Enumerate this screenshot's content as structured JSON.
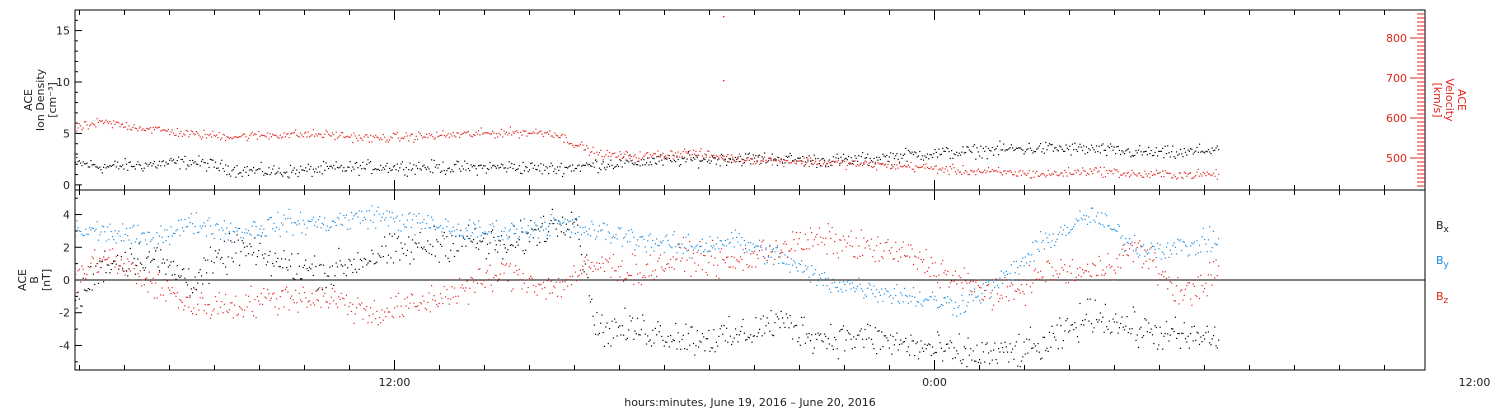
{
  "colors": {
    "black": "#000000",
    "red": "#e0241b",
    "blue": "#1a8ae0",
    "frame": "#000000"
  },
  "xaxis": {
    "label": "hours:minutes, June 19, 2016 – June 20, 2016",
    "range_hours": [
      4.9,
      34.9
    ],
    "major_ticks": [
      {
        "h": 12,
        "label": "12:00"
      },
      {
        "h": 24,
        "label": "0:00"
      },
      {
        "h": 36,
        "label": "12:00"
      }
    ],
    "minor_step_hours": 1
  },
  "chart_data": [
    {
      "type": "scatter",
      "panel": "top",
      "ylabel": [
        "ACE",
        "Ion Density",
        "[cm⁻³]"
      ],
      "ylabel2": [
        "ACE",
        "Velocity",
        "[km/s]"
      ],
      "ylim": [
        -0.5,
        17
      ],
      "yticks": [
        0,
        5,
        10,
        15
      ],
      "y2lim": [
        420,
        870
      ],
      "y2ticks": [
        500,
        600,
        700,
        800
      ],
      "series": [
        {
          "axis": "left",
          "color": "black",
          "x": [
            4.9,
            5.5,
            6.5,
            7.5,
            8.5,
            9.5,
            10.5,
            11.5,
            12.5,
            13.5,
            14.5,
            15.5,
            16.5,
            17.5,
            18.5,
            19.5,
            20.5,
            21.5,
            22.5,
            23.5,
            24.5,
            25.5,
            26.5,
            27.5,
            28.5,
            29.5,
            30.3
          ],
          "y": [
            2.2,
            1.8,
            2.0,
            2.3,
            1.5,
            1.3,
            1.6,
            1.8,
            1.8,
            1.7,
            1.8,
            1.6,
            2.0,
            2.3,
            2.5,
            2.6,
            2.6,
            2.4,
            2.5,
            3.0,
            3.2,
            3.5,
            3.6,
            3.5,
            3.2,
            3.1,
            3.6
          ],
          "noise": 0.55
        },
        {
          "axis": "right",
          "color": "red",
          "x": [
            4.9,
            5.5,
            6.5,
            7.5,
            8.5,
            9.5,
            10.5,
            11.5,
            12.5,
            13.5,
            14.5,
            15.5,
            16.5,
            17.5,
            18.5,
            19.5,
            20.5,
            21.5,
            22.5,
            23.5,
            24.5,
            25.5,
            26.5,
            27.5,
            28.5,
            29.5,
            30.3
          ],
          "y": [
            575,
            590,
            575,
            560,
            555,
            560,
            560,
            550,
            555,
            560,
            565,
            565,
            510,
            505,
            515,
            500,
            495,
            490,
            485,
            480,
            470,
            465,
            460,
            470,
            460,
            460,
            460
          ],
          "noise": 10,
          "outliers": [
            {
              "x": 19.3,
              "y": 855
            },
            {
              "x": 19.3,
              "y": 695
            }
          ]
        }
      ]
    },
    {
      "type": "scatter",
      "panel": "bottom",
      "ylabel": [
        "ACE",
        "B",
        "[nT]"
      ],
      "ylim": [
        -5.5,
        5.5
      ],
      "yticks": [
        -4,
        -2,
        0,
        2,
        4
      ],
      "legend": [
        {
          "label": "B",
          "sub": "x",
          "color": "black"
        },
        {
          "label": "B",
          "sub": "y",
          "color": "blue"
        },
        {
          "label": "B",
          "sub": "z",
          "color": "red"
        }
      ],
      "series": [
        {
          "name": "Bx",
          "color": "black",
          "x": [
            4.9,
            5.5,
            6.5,
            7.5,
            8.5,
            9.5,
            10.5,
            11.5,
            12.5,
            13.5,
            14.5,
            15.5,
            16.0,
            16.5,
            17.5,
            18.5,
            19.5,
            20.5,
            21.5,
            22.5,
            23.5,
            24.5,
            25.5,
            26.5,
            27.5,
            28.5,
            29.5,
            30.3
          ],
          "y": [
            -1.5,
            1.0,
            1.5,
            0.0,
            2.0,
            1.0,
            0.5,
            1.5,
            2.0,
            2.5,
            2.0,
            3.5,
            4.0,
            -3.0,
            -3.0,
            -3.5,
            -3.5,
            -2.5,
            -3.5,
            -3.5,
            -4.0,
            -4.5,
            -4.5,
            -4.0,
            -2.0,
            -3.0,
            -3.5,
            -3.5
          ],
          "noise": 0.9
        },
        {
          "name": "By",
          "color": "blue",
          "x": [
            4.9,
            5.5,
            6.5,
            7.5,
            8.5,
            9.5,
            10.5,
            11.5,
            12.5,
            13.5,
            14.5,
            15.5,
            16.5,
            17.5,
            18.5,
            19.5,
            20.5,
            21.5,
            22.5,
            23.5,
            24.5,
            25.5,
            26.5,
            27.5,
            28.5,
            29.5,
            30.3
          ],
          "y": [
            3.0,
            3.0,
            2.5,
            3.5,
            3.0,
            3.5,
            3.5,
            4.0,
            3.5,
            3.0,
            3.0,
            3.5,
            3.0,
            2.5,
            2.0,
            2.5,
            1.5,
            0.0,
            -0.5,
            -1.0,
            -1.5,
            0.0,
            2.5,
            4.0,
            2.0,
            2.0,
            2.5
          ],
          "noise": 0.6
        },
        {
          "name": "Bz",
          "color": "red",
          "x": [
            4.9,
            5.5,
            6.5,
            7.5,
            8.5,
            9.5,
            10.5,
            11.5,
            12.5,
            13.5,
            14.5,
            15.5,
            16.5,
            17.5,
            18.5,
            19.5,
            20.5,
            21.5,
            22.5,
            23.5,
            24.5,
            25.5,
            26.5,
            27.5,
            28.5,
            29.5,
            30.3
          ],
          "y": [
            0.0,
            1.5,
            0.0,
            -1.5,
            -1.5,
            -1.0,
            -1.0,
            -2.0,
            -1.5,
            -0.5,
            0.5,
            -0.5,
            1.0,
            0.5,
            1.5,
            1.0,
            2.0,
            2.5,
            2.0,
            1.5,
            0.0,
            -1.0,
            0.5,
            0.5,
            2.0,
            -1.0,
            0.5
          ],
          "noise": 0.8
        }
      ]
    }
  ]
}
